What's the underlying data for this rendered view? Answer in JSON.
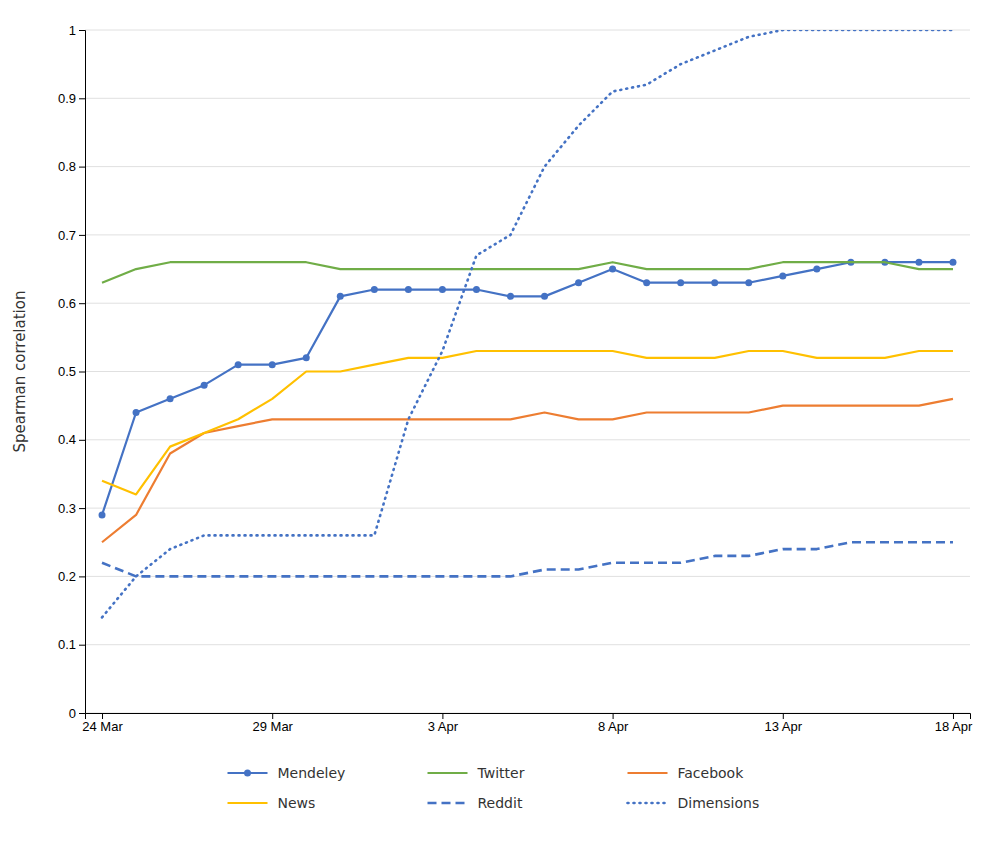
{
  "chart_data": {
    "type": "line",
    "ylabel": "Spearman correlation",
    "categories": [
      "24 Mar",
      null,
      null,
      null,
      null,
      "29 Mar",
      null,
      null,
      null,
      null,
      "3 Apr",
      null,
      null,
      null,
      null,
      "8 Apr",
      null,
      null,
      null,
      null,
      "13 Apr",
      null,
      null,
      null,
      null,
      "18 Apr"
    ],
    "ylim": [
      0,
      1.0
    ],
    "yticks": [
      0,
      0.1,
      0.2,
      0.3,
      0.4,
      0.5,
      0.6,
      0.7,
      0.8,
      0.9,
      1
    ],
    "grid": true,
    "legend": "bottom",
    "series": [
      {
        "name": "Mendeley",
        "color": "#4472c4",
        "line_style": "solid",
        "marker": "circle",
        "values": [
          0.29,
          0.44,
          0.46,
          0.48,
          0.51,
          0.51,
          0.52,
          0.61,
          0.62,
          0.62,
          0.62,
          0.62,
          0.61,
          0.61,
          0.63,
          0.65,
          0.63,
          0.63,
          0.63,
          0.63,
          0.64,
          0.65,
          0.66,
          0.66,
          0.66,
          0.66
        ]
      },
      {
        "name": "Twitter",
        "color": "#70ad47",
        "line_style": "solid",
        "values": [
          0.63,
          0.65,
          0.66,
          0.66,
          0.66,
          0.66,
          0.66,
          0.65,
          0.65,
          0.65,
          0.65,
          0.65,
          0.65,
          0.65,
          0.65,
          0.66,
          0.65,
          0.65,
          0.65,
          0.65,
          0.66,
          0.66,
          0.66,
          0.66,
          0.65,
          0.65
        ]
      },
      {
        "name": "Facebook",
        "color": "#ed7d31",
        "line_style": "solid",
        "values": [
          0.25,
          0.29,
          0.38,
          0.41,
          0.42,
          0.43,
          0.43,
          0.43,
          0.43,
          0.43,
          0.43,
          0.43,
          0.43,
          0.44,
          0.43,
          0.43,
          0.44,
          0.44,
          0.44,
          0.44,
          0.45,
          0.45,
          0.45,
          0.45,
          0.45,
          0.46
        ]
      },
      {
        "name": "News",
        "color": "#ffc000",
        "line_style": "solid",
        "values": [
          0.34,
          0.32,
          0.39,
          0.41,
          0.43,
          0.46,
          0.5,
          0.5,
          0.51,
          0.52,
          0.52,
          0.53,
          0.53,
          0.53,
          0.53,
          0.53,
          0.52,
          0.52,
          0.52,
          0.53,
          0.53,
          0.52,
          0.52,
          0.52,
          0.53,
          0.53
        ]
      },
      {
        "name": "Reddit",
        "color": "#4472c4",
        "line_style": "dashed",
        "values": [
          0.22,
          0.2,
          0.2,
          0.2,
          0.2,
          0.2,
          0.2,
          0.2,
          0.2,
          0.2,
          0.2,
          0.2,
          0.2,
          0.21,
          0.21,
          0.22,
          0.22,
          0.22,
          0.23,
          0.23,
          0.24,
          0.24,
          0.25,
          0.25,
          0.25,
          0.25
        ]
      },
      {
        "name": "Dimensions",
        "color": "#4472c4",
        "line_style": "dotted",
        "values": [
          0.14,
          0.2,
          0.24,
          0.26,
          0.26,
          0.26,
          0.26,
          0.26,
          0.26,
          0.43,
          0.53,
          0.67,
          0.7,
          0.8,
          0.86,
          0.91,
          0.92,
          0.95,
          0.97,
          0.99,
          1.0,
          1.0,
          1.0,
          1.0,
          1.0,
          1.0
        ]
      }
    ]
  }
}
